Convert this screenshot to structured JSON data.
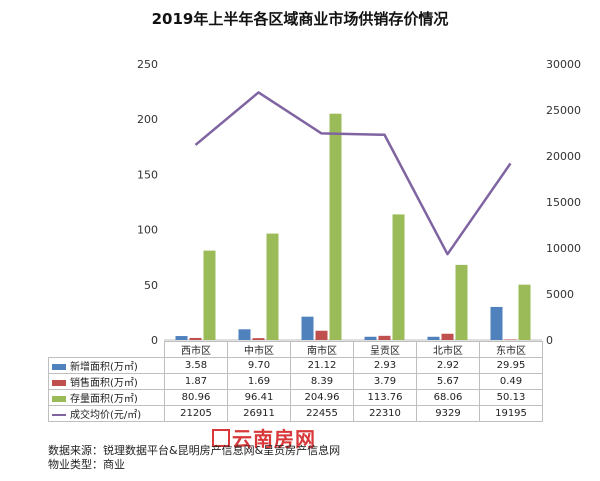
{
  "chart_data": {
    "type": "bar",
    "title": "2019年上半年各区域商业市场供销存价情况",
    "categories": [
      "西市区",
      "中市区",
      "南市区",
      "呈贡区",
      "北市区",
      "东市区"
    ],
    "ylim": [
      0,
      250
    ],
    "yticks": [
      "0",
      "50",
      "100",
      "150",
      "200",
      "250"
    ],
    "y2lim": [
      0,
      30000
    ],
    "y2ticks": [
      "0",
      "5000",
      "10000",
      "15000",
      "20000",
      "25000",
      "30000"
    ],
    "grid": false,
    "legend": "in-table",
    "series": [
      {
        "name": "新增面积(万㎡)",
        "type": "bar",
        "axis": "left",
        "color": "#4f81bd",
        "values": [
          3.58,
          9.7,
          21.12,
          2.93,
          2.92,
          29.95
        ],
        "labels": [
          "3.58",
          "9.70",
          "21.12",
          "2.93",
          "2.92",
          "29.95"
        ]
      },
      {
        "name": "销售面积(万㎡)",
        "type": "bar",
        "axis": "left",
        "color": "#c0504d",
        "values": [
          1.87,
          1.69,
          8.39,
          3.79,
          5.67,
          0.49
        ],
        "labels": [
          "1.87",
          "1.69",
          "8.39",
          "3.79",
          "5.67",
          "0.49"
        ]
      },
      {
        "name": "存量面积(万㎡)",
        "type": "bar",
        "axis": "left",
        "color": "#9bbb59",
        "values": [
          80.96,
          96.41,
          204.96,
          113.76,
          68.06,
          50.13
        ],
        "labels": [
          "80.96",
          "96.41",
          "204.96",
          "113.76",
          "68.06",
          "50.13"
        ]
      },
      {
        "name": "成交均价(元/㎡)",
        "type": "line",
        "axis": "right",
        "color": "#8064a2",
        "values": [
          21205,
          26911,
          22455,
          22310,
          9329,
          19195
        ],
        "labels": [
          "21205",
          "26911",
          "22455",
          "22310",
          "9329",
          "19195"
        ]
      }
    ]
  },
  "source": {
    "data_label": "数据来源：",
    "data_value": "锐理数据平台&昆明房产信息网&呈贡房产信息网",
    "type_label": "物业类型：",
    "type_value": "商业"
  },
  "watermark": "云南房网"
}
